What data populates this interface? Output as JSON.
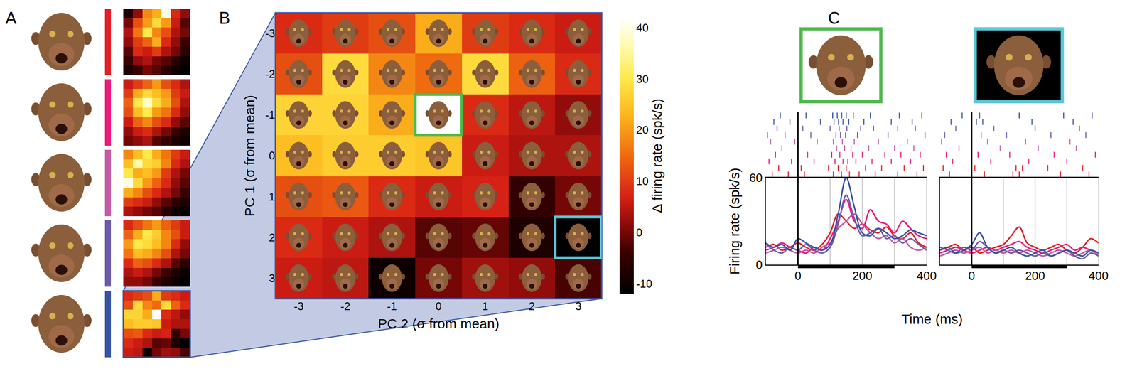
{
  "chart_data": [
    {
      "type": "heatmap",
      "label": "A",
      "tick_labels": false,
      "colors": [
        "#e41e26",
        "#ec1a7a",
        "#c25aa6",
        "#6b5ba8",
        "#3953a4"
      ],
      "cells": [
        [
          [
            -8,
            2,
            18,
            22,
            40,
            8,
            2
          ],
          [
            0,
            12,
            20,
            28,
            20,
            6,
            -2
          ],
          [
            4,
            16,
            30,
            18,
            12,
            4,
            0
          ],
          [
            2,
            10,
            14,
            22,
            8,
            2,
            -4
          ],
          [
            -2,
            8,
            6,
            10,
            4,
            0,
            -6
          ],
          [
            -4,
            2,
            4,
            0,
            -2,
            -6,
            -10
          ],
          [
            -8,
            -4,
            0,
            -2,
            -6,
            -10,
            -12
          ]
        ],
        [
          [
            6,
            10,
            14,
            20,
            12,
            8,
            4
          ],
          [
            10,
            22,
            28,
            24,
            20,
            10,
            6
          ],
          [
            14,
            30,
            38,
            28,
            22,
            12,
            4
          ],
          [
            12,
            24,
            30,
            20,
            16,
            8,
            2
          ],
          [
            6,
            14,
            18,
            12,
            8,
            2,
            -2
          ],
          [
            2,
            6,
            8,
            4,
            0,
            -4,
            -8
          ],
          [
            0,
            2,
            4,
            -2,
            -4,
            -8,
            -10
          ]
        ],
        [
          [
            18,
            24,
            30,
            22,
            16,
            10,
            6
          ],
          [
            24,
            36,
            28,
            26,
            18,
            8,
            4
          ],
          [
            30,
            22,
            24,
            20,
            10,
            4,
            0
          ],
          [
            40,
            28,
            20,
            14,
            8,
            2,
            -2
          ],
          [
            22,
            18,
            12,
            8,
            4,
            0,
            -4
          ],
          [
            10,
            8,
            6,
            2,
            -2,
            -6,
            -8
          ],
          [
            4,
            2,
            0,
            -2,
            -6,
            -10,
            -12
          ]
        ],
        [
          [
            8,
            12,
            16,
            20,
            14,
            10,
            6
          ],
          [
            14,
            22,
            30,
            26,
            18,
            12,
            6
          ],
          [
            20,
            30,
            28,
            24,
            18,
            8,
            2
          ],
          [
            16,
            24,
            22,
            18,
            12,
            4,
            0
          ],
          [
            8,
            14,
            12,
            8,
            4,
            -2,
            -6
          ],
          [
            4,
            6,
            4,
            0,
            -4,
            -8,
            -10
          ],
          [
            2,
            2,
            0,
            -4,
            -8,
            -10,
            -12
          ]
        ],
        [
          [
            8,
            10,
            12,
            22,
            10,
            8,
            6
          ],
          [
            12,
            28,
            18,
            15,
            28,
            14,
            8
          ],
          [
            27,
            27,
            22,
            42,
            8,
            5,
            2
          ],
          [
            24,
            26,
            26,
            25,
            6,
            4,
            4
          ],
          [
            12,
            13,
            8,
            6,
            7,
            -5,
            0
          ],
          [
            8,
            6,
            4,
            -2,
            -1,
            -8,
            -12
          ],
          [
            6,
            5,
            -10,
            0,
            3,
            2,
            -3
          ]
        ]
      ]
    },
    {
      "type": "heatmap",
      "label": "B",
      "x_label": "PC 2 (σ from mean)",
      "y_label": "PC 1 (σ from mean)",
      "x": [
        -3,
        -2,
        -1,
        0,
        1,
        2,
        3
      ],
      "y": [
        -3,
        -2,
        -1,
        0,
        1,
        2,
        3
      ],
      "xlim": [
        -3.5,
        3.5
      ],
      "ylim": [
        3.5,
        -3.5
      ],
      "xticks": [
        -3,
        -2,
        -1,
        0,
        1,
        2,
        3
      ],
      "yticks": [
        -3,
        -2,
        -1,
        0,
        1,
        2,
        3
      ],
      "color": "#3953a4",
      "cells": [
        [
          8,
          10,
          12,
          22,
          10,
          8,
          6
        ],
        [
          12,
          28,
          18,
          15,
          28,
          14,
          8
        ],
        [
          27,
          27,
          22,
          42,
          8,
          5,
          2
        ],
        [
          24,
          26,
          26,
          25,
          6,
          4,
          4
        ],
        [
          12,
          13,
          8,
          6,
          7,
          -5,
          0
        ],
        [
          8,
          6,
          4,
          -2,
          -1,
          -8,
          -12
        ],
        [
          6,
          5,
          -10,
          0,
          3,
          2,
          -3
        ]
      ],
      "colorbar": {
        "title": "Δ firing rate (spk/s)",
        "range": [
          -12,
          42
        ],
        "ticks": [
          -10,
          0,
          10,
          20,
          30,
          40
        ]
      }
    },
    {
      "type": "line",
      "label": "C",
      "x_label": "Time (ms)",
      "y_label": "Firing rate (spk/s)",
      "xlim": [
        -100,
        400
      ],
      "ylim": [
        0,
        60
      ],
      "xticks": [
        0,
        200,
        400
      ],
      "yticks": [
        0,
        60
      ],
      "stimulus": [
        0,
        300
      ],
      "gridlines": [
        100,
        200,
        300,
        400
      ],
      "x": [
        -100,
        -75,
        -50,
        -25,
        0,
        25,
        50,
        75,
        100,
        125,
        150,
        175,
        200,
        225,
        250,
        275,
        300,
        325,
        350,
        375,
        400
      ],
      "panels": [
        {
          "color": "#4db848",
          "cell": {
            "pc1": -1,
            "pc2": 0
          },
          "series": [
            {
              "color": "#e41e26",
              "values": [
                12,
                14,
                10,
                12,
                15,
                12,
                10,
                14,
                22,
                35,
                30,
                25,
                28,
                24,
                22,
                26,
                20,
                18,
                22,
                15,
                12
              ]
            },
            {
              "color": "#ec1a7a",
              "values": [
                10,
                12,
                15,
                12,
                10,
                8,
                12,
                10,
                18,
                30,
                45,
                30,
                25,
                38,
                30,
                28,
                22,
                30,
                25,
                20,
                18
              ]
            },
            {
              "color": "#c25aa6",
              "values": [
                8,
                10,
                12,
                10,
                8,
                10,
                8,
                12,
                15,
                25,
                30,
                35,
                28,
                22,
                18,
                20,
                15,
                18,
                12,
                10,
                12
              ]
            },
            {
              "color": "#6b5ba8",
              "values": [
                14,
                10,
                8,
                12,
                10,
                14,
                10,
                8,
                12,
                28,
                48,
                32,
                20,
                22,
                25,
                18,
                20,
                15,
                18,
                14,
                10
              ]
            },
            {
              "color": "#3953a4",
              "values": [
                15,
                12,
                14,
                10,
                18,
                15,
                12,
                10,
                14,
                35,
                60,
                40,
                22,
                20,
                25,
                22,
                18,
                20,
                24,
                22,
                20
              ]
            }
          ],
          "raster": [
            {
              "color": "#e41e26",
              "spikes": [
                -80,
                -30,
                20,
                110,
                135,
                160,
                190,
                240,
                310,
                370
              ]
            },
            {
              "color": "#e41e26",
              "spikes": [
                -60,
                10,
                95,
                125,
                150,
                210,
                260,
                330,
                390
              ]
            },
            {
              "color": "#ec1a7a",
              "spikes": [
                -90,
                -20,
                50,
                115,
                140,
                155,
                180,
                230,
                290,
                350
              ]
            },
            {
              "color": "#ec1a7a",
              "spikes": [
                -70,
                30,
                105,
                130,
                170,
                200,
                270,
                320,
                380
              ]
            },
            {
              "color": "#c25aa6",
              "spikes": [
                -50,
                0,
                120,
                145,
                165,
                220,
                300,
                360
              ]
            },
            {
              "color": "#c25aa6",
              "spikes": [
                -85,
                -10,
                60,
                110,
                138,
                175,
                250,
                340
              ]
            },
            {
              "color": "#6b5ba8",
              "spikes": [
                -95,
                -40,
                40,
                118,
                132,
                148,
                185,
                280,
                395
              ]
            },
            {
              "color": "#6b5ba8",
              "spikes": [
                -65,
                15,
                100,
                128,
                152,
                195,
                235,
                310,
                365
              ]
            },
            {
              "color": "#3953a4",
              "spikes": [
                -75,
                -25,
                70,
                112,
                126,
                140,
                158,
                205,
                290,
                355
              ]
            },
            {
              "color": "#3953a4",
              "spikes": [
                -55,
                25,
                108,
                122,
                136,
                150,
                172,
                225,
                315,
                385
              ]
            }
          ]
        },
        {
          "color": "#5bc5d8",
          "cell": {
            "pc1": 2,
            "pc2": 3
          },
          "tick_labels": "x",
          "series": [
            {
              "color": "#e41e26",
              "values": [
                10,
                12,
                14,
                10,
                12,
                8,
                10,
                12,
                14,
                20,
                26,
                15,
                12,
                10,
                12,
                14,
                10,
                8,
                12,
                18,
                15
              ]
            },
            {
              "color": "#ec1a7a",
              "values": [
                8,
                10,
                12,
                10,
                8,
                10,
                12,
                10,
                12,
                14,
                16,
                12,
                10,
                8,
                10,
                12,
                14,
                10,
                12,
                10,
                8
              ]
            },
            {
              "color": "#c25aa6",
              "values": [
                6,
                8,
                10,
                8,
                10,
                12,
                8,
                10,
                8,
                10,
                8,
                10,
                8,
                6,
                8,
                10,
                8,
                6,
                8,
                10,
                6
              ]
            },
            {
              "color": "#6b5ba8",
              "values": [
                12,
                10,
                8,
                12,
                10,
                16,
                12,
                8,
                10,
                8,
                10,
                8,
                6,
                8,
                6,
                8,
                10,
                6,
                4,
                8,
                6
              ]
            },
            {
              "color": "#3953a4",
              "values": [
                10,
                12,
                8,
                10,
                14,
                22,
                12,
                8,
                10,
                12,
                8,
                6,
                8,
                10,
                6,
                8,
                10,
                8,
                6,
                10,
                8
              ]
            }
          ],
          "raster": [
            {
              "color": "#e41e26",
              "spikes": [
                -70,
                40,
                130,
                150,
                280,
                370
              ]
            },
            {
              "color": "#e41e26",
              "spikes": [
                -90,
                10,
                140,
                160,
                240,
                350
              ]
            },
            {
              "color": "#ec1a7a",
              "spikes": [
                -60,
                60,
                180,
                300
              ]
            },
            {
              "color": "#ec1a7a",
              "spikes": [
                -80,
                20,
                120,
                260,
                390
              ]
            },
            {
              "color": "#c25aa6",
              "spikes": [
                -40,
                90,
                210,
                330
              ]
            },
            {
              "color": "#c25aa6",
              "spikes": [
                -95,
                50,
                170,
                310
              ]
            },
            {
              "color": "#6b5ba8",
              "spikes": [
                -85,
                30,
                110,
                250,
                360
              ]
            },
            {
              "color": "#6b5ba8",
              "spikes": [
                -50,
                70,
                200,
                340
              ]
            },
            {
              "color": "#3953a4",
              "spikes": [
                -65,
                15,
                35,
                190,
                320
              ]
            },
            {
              "color": "#3953a4",
              "spikes": [
                -30,
                25,
                150,
                290,
                380
              ]
            }
          ]
        }
      ]
    }
  ]
}
